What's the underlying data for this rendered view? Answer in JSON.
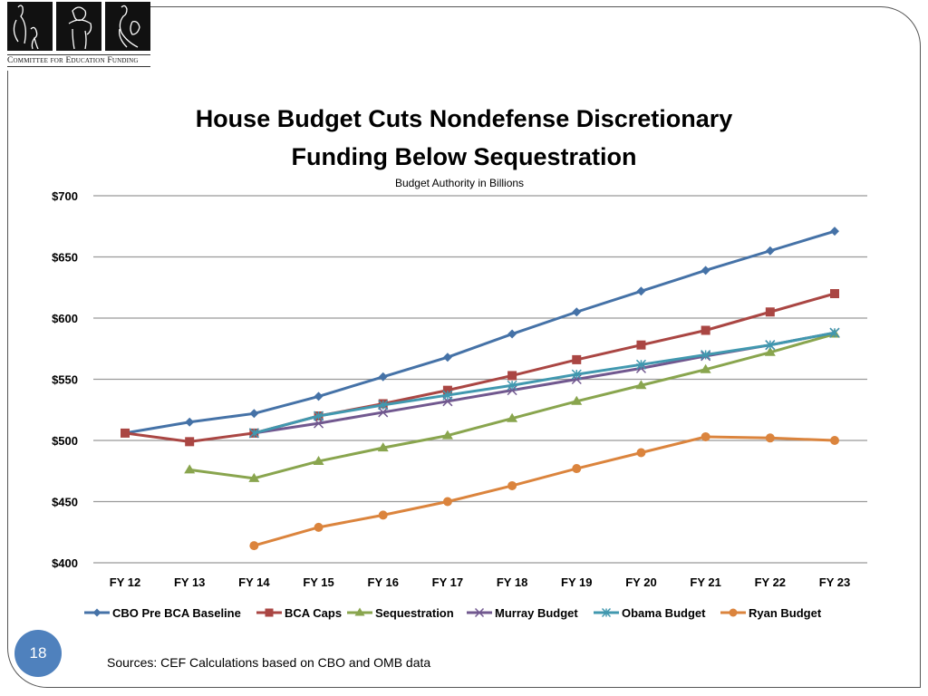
{
  "logo": {
    "caption": "Committee for Education Funding"
  },
  "page_number": "18",
  "sources": "Sources:  CEF Calculations based on CBO and OMB data",
  "chart_data": {
    "type": "line",
    "title_line1": "House Budget Cuts Nondefense Discretionary",
    "title_line2": "Funding Below Sequestration",
    "subtitle": "Budget Authority in Billions",
    "xlabel": "",
    "ylabel": "",
    "categories": [
      "FY 12",
      "FY 13",
      "FY 14",
      "FY 15",
      "FY 16",
      "FY 17",
      "FY 18",
      "FY 19",
      "FY 20",
      "FY 21",
      "FY 22",
      "FY 23"
    ],
    "ylim": [
      400,
      700
    ],
    "yticks": [
      400,
      450,
      500,
      550,
      600,
      650,
      700
    ],
    "ytick_labels": [
      "$400",
      "$450",
      "$500",
      "$550",
      "$600",
      "$650",
      "$700"
    ],
    "grid": true,
    "legend_position": "bottom",
    "series": [
      {
        "name": "CBO Pre BCA Baseline",
        "color": "#4572a7",
        "marker": "diamond",
        "values": [
          506,
          515,
          522,
          536,
          552,
          568,
          587,
          605,
          622,
          639,
          655,
          671
        ]
      },
      {
        "name": "BCA Caps",
        "color": "#aa4643",
        "marker": "square",
        "values": [
          506,
          499,
          506,
          520,
          530,
          541,
          553,
          566,
          578,
          590,
          605,
          620
        ]
      },
      {
        "name": "Sequestration",
        "color": "#89a54e",
        "marker": "triangle",
        "values": [
          null,
          476,
          469,
          483,
          494,
          504,
          518,
          532,
          545,
          558,
          572,
          587
        ]
      },
      {
        "name": "Murray Budget",
        "color": "#71588f",
        "marker": "x",
        "values": [
          null,
          null,
          506,
          514,
          523,
          532,
          541,
          550,
          559,
          569,
          578,
          588
        ]
      },
      {
        "name": "Obama Budget",
        "color": "#4198af",
        "marker": "star",
        "values": [
          null,
          null,
          506,
          520,
          529,
          537,
          545,
          554,
          562,
          570,
          578,
          588
        ]
      },
      {
        "name": "Ryan Budget",
        "color": "#db843d",
        "marker": "circle",
        "values": [
          null,
          null,
          414,
          429,
          439,
          450,
          463,
          477,
          490,
          503,
          502,
          500
        ]
      }
    ]
  }
}
